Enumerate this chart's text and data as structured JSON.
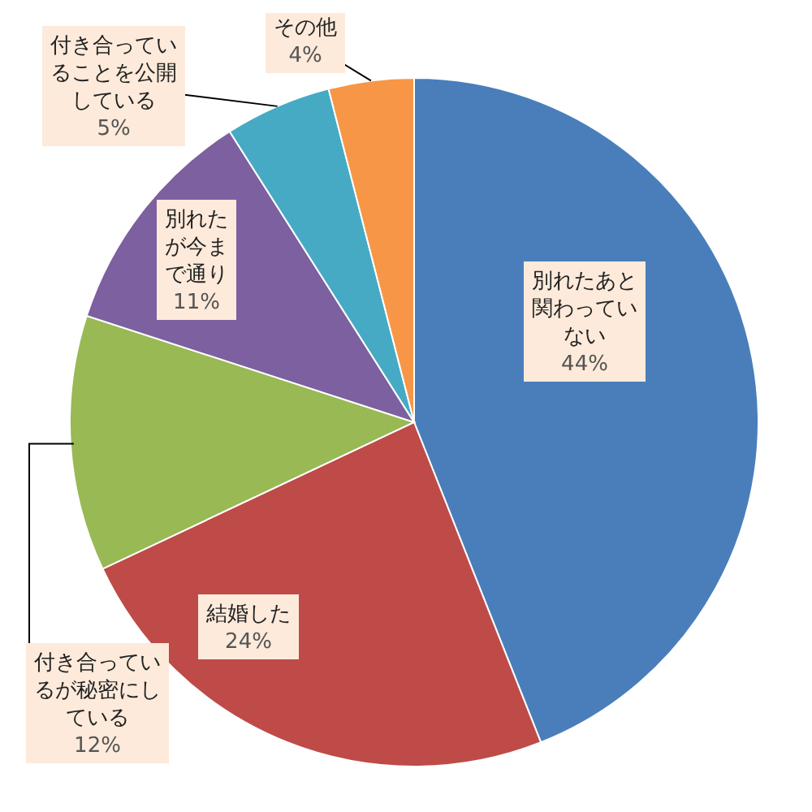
{
  "chart_data": {
    "type": "pie",
    "categories": [
      "別れたあと関わっていない",
      "結婚した",
      "付き合っているが秘密にしている",
      "別れたが今まで通り",
      "付き合っていることを公開している",
      "その他"
    ],
    "values": [
      44,
      24,
      12,
      11,
      5,
      4
    ],
    "value_labels": [
      "44%",
      "24%",
      "12%",
      "11%",
      "5%",
      "4%"
    ],
    "colors": [
      "#4a7ebb",
      "#be4b48",
      "#98b954",
      "#7d60a0",
      "#46aac5",
      "#f79646"
    ]
  }
}
